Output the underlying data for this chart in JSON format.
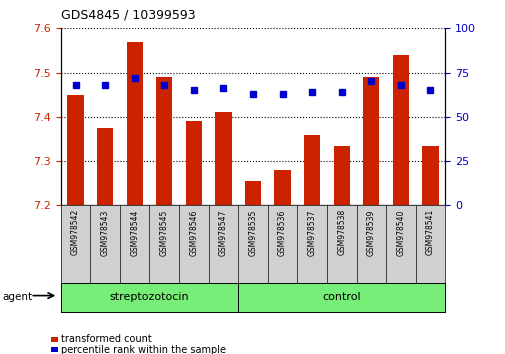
{
  "title": "GDS4845 / 10399593",
  "samples": [
    "GSM978542",
    "GSM978543",
    "GSM978544",
    "GSM978545",
    "GSM978546",
    "GSM978547",
    "GSM978535",
    "GSM978536",
    "GSM978537",
    "GSM978538",
    "GSM978539",
    "GSM978540",
    "GSM978541"
  ],
  "bar_values": [
    7.45,
    7.375,
    7.57,
    7.49,
    7.39,
    7.41,
    7.255,
    7.28,
    7.36,
    7.335,
    7.49,
    7.54,
    7.335
  ],
  "percentile_values": [
    68,
    68,
    72,
    68,
    65,
    66,
    63,
    63,
    64,
    64,
    70,
    68,
    65
  ],
  "bar_color": "#cc2200",
  "percentile_color": "#0000cc",
  "ylim_left": [
    7.2,
    7.6
  ],
  "ylim_right": [
    0,
    100
  ],
  "yticks_left": [
    7.2,
    7.3,
    7.4,
    7.5,
    7.6
  ],
  "yticks_right": [
    0,
    25,
    50,
    75,
    100
  ],
  "group1_label": "streptozotocin",
  "group1_count": 6,
  "group2_label": "control",
  "group2_count": 7,
  "group_color": "#77ee77",
  "agent_label": "agent",
  "legend_bar_label": "transformed count",
  "legend_pct_label": "percentile rank within the sample",
  "bar_width": 0.55,
  "tick_color_left": "#cc2200",
  "tick_color_right": "#0000cc",
  "ybase": 7.2
}
